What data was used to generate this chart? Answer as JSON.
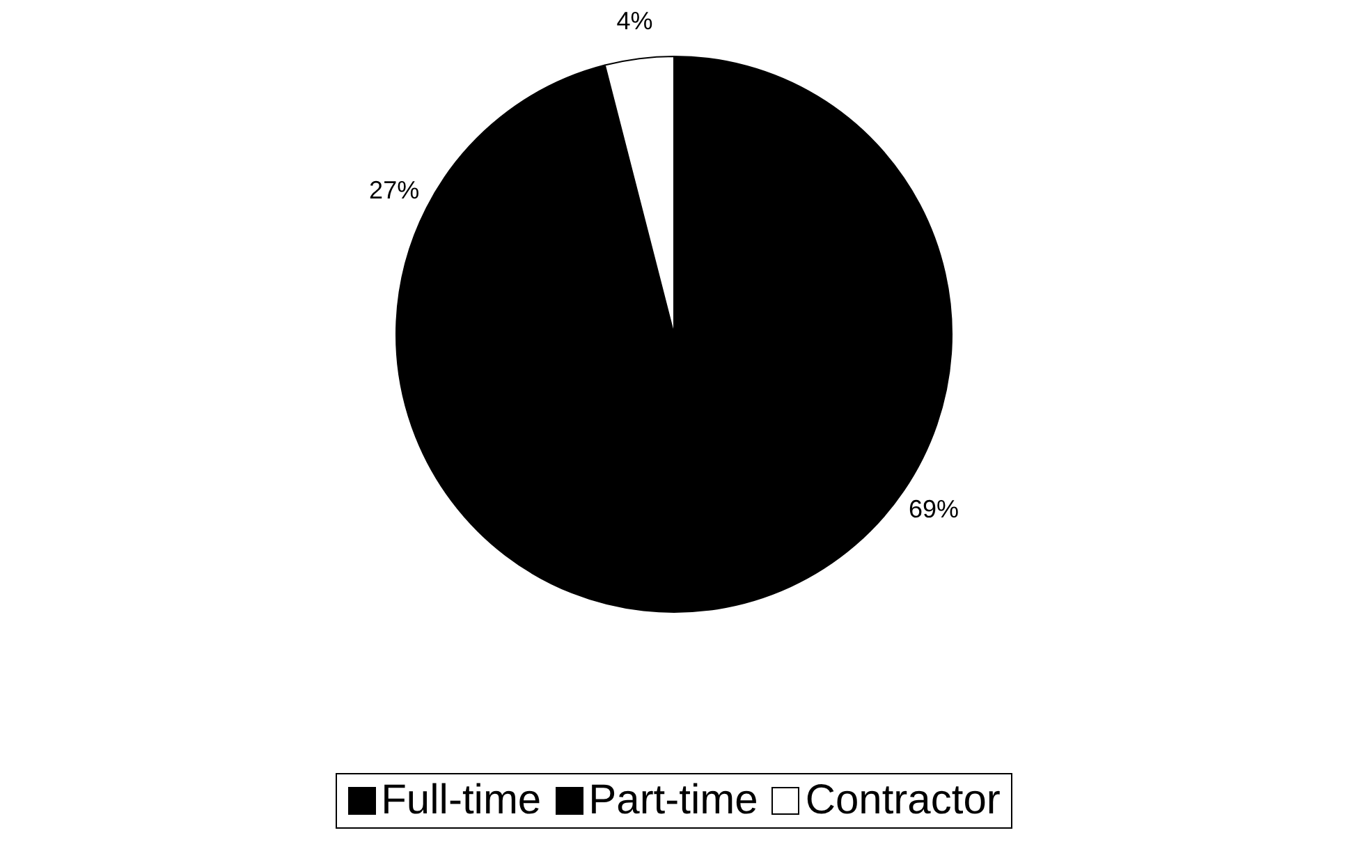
{
  "chart_data": {
    "type": "pie",
    "categories": [
      "Full-time",
      "Part-time",
      "Contractor"
    ],
    "values": [
      69,
      27,
      4
    ],
    "colors": [
      "#000000",
      "#000000",
      "#ffffff"
    ],
    "value_labels": [
      "69%",
      "27%",
      "4%"
    ],
    "legend": "bottom"
  }
}
